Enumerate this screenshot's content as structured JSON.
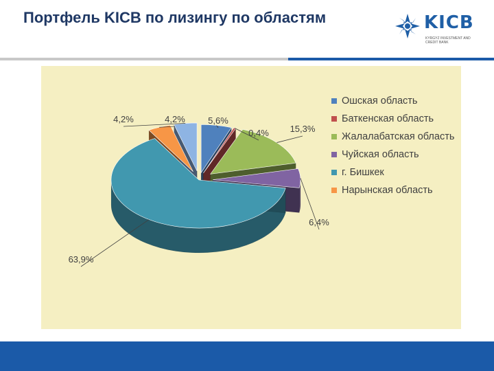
{
  "header": {
    "title": "Портфель KICB по лизингу по областям",
    "logo_text": "KICB",
    "logo_subtext": "KYRGYZ INVESTMENT AND CREDIT BANK"
  },
  "chart_data": {
    "type": "pie",
    "title": "",
    "legend_position": "right",
    "series": [
      {
        "name": "Ошская область",
        "value": 5.6,
        "label": "5,6%",
        "color": "#4f81bd"
      },
      {
        "name": "Баткенская область",
        "value": 0.4,
        "label": "0,4%",
        "color": "#c0504d"
      },
      {
        "name": "Жалалабатская область",
        "value": 15.3,
        "label": "15,3%",
        "color": "#9bbb59"
      },
      {
        "name": "Чуйская область",
        "value": 6.4,
        "label": "6,4%",
        "color": "#8064a2"
      },
      {
        "name": "г. Бишкек",
        "value": 63.9,
        "label": "63,9%",
        "color": "#4198af"
      },
      {
        "name": "Нарынская область",
        "value": 4.2,
        "label": "4,2%",
        "color": "#f79646"
      },
      {
        "name": "",
        "value": 4.2,
        "label": "4,2%",
        "color": "#8eb4e3"
      }
    ]
  }
}
